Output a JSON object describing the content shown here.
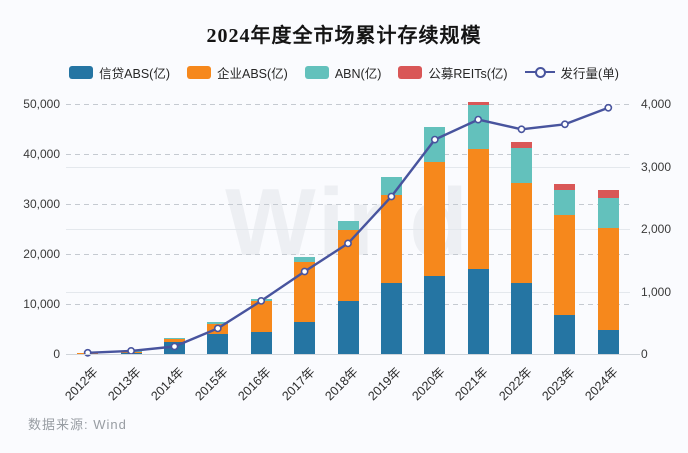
{
  "page": {
    "title": "2024年度全市场累计存续规模",
    "source_note": "数据来源: Wind",
    "watermark": "Wind"
  },
  "chart_data": {
    "type": "stacked-bar-with-line",
    "title": "2024年度全市场累计存续规模",
    "categories": [
      "2012年",
      "2013年",
      "2014年",
      "2015年",
      "2016年",
      "2017年",
      "2018年",
      "2019年",
      "2020年",
      "2021年",
      "2022年",
      "2023年",
      "2024年"
    ],
    "series": [
      {
        "name": "信贷ABS(亿)",
        "type": "bar",
        "axis": "left",
        "color": "#2575A3",
        "values": [
          250,
          350,
          2500,
          4100,
          4500,
          6450,
          10650,
          14150,
          15600,
          17000,
          14150,
          7800,
          4800
        ]
      },
      {
        "name": "企业ABS(亿)",
        "type": "bar",
        "axis": "left",
        "color": "#F6881C",
        "values": [
          30,
          150,
          600,
          1900,
          6100,
          11900,
          14150,
          17650,
          22900,
          23950,
          20100,
          20000,
          20350
        ]
      },
      {
        "name": "ABN(亿)",
        "type": "bar",
        "axis": "left",
        "color": "#63C1BC",
        "values": [
          0,
          100,
          150,
          450,
          400,
          1000,
          1850,
          3650,
          7000,
          8800,
          7000,
          5000,
          6000
        ]
      },
      {
        "name": "公募REITs(亿)",
        "type": "bar",
        "axis": "left",
        "color": "#D95757",
        "values": [
          0,
          0,
          0,
          0,
          0,
          0,
          0,
          0,
          0,
          700,
          1080,
          1130,
          1660
        ]
      },
      {
        "name": "发行量(单)",
        "type": "line",
        "axis": "right",
        "color": "#48549E",
        "marker": "hollow-circle",
        "values": [
          20,
          50,
          120,
          410,
          850,
          1320,
          1770,
          2520,
          3430,
          3750,
          3595,
          3675,
          3940
        ]
      }
    ],
    "left_axis": {
      "min": 0,
      "max": 50000,
      "tick_step": 10000,
      "tick_labels": [
        "0",
        "10,000",
        "20,000",
        "30,000",
        "40,000",
        "50,000"
      ],
      "gridline_style": "dashed"
    },
    "right_axis": {
      "min": 0,
      "max": 4000,
      "tick_step": 1000,
      "tick_labels": [
        "0",
        "1,000",
        "2,000",
        "3,000",
        "4,000"
      ],
      "gridline_style": "solid"
    },
    "legend_position": "top",
    "watermark": "Wind",
    "source": "数据来源: Wind"
  }
}
